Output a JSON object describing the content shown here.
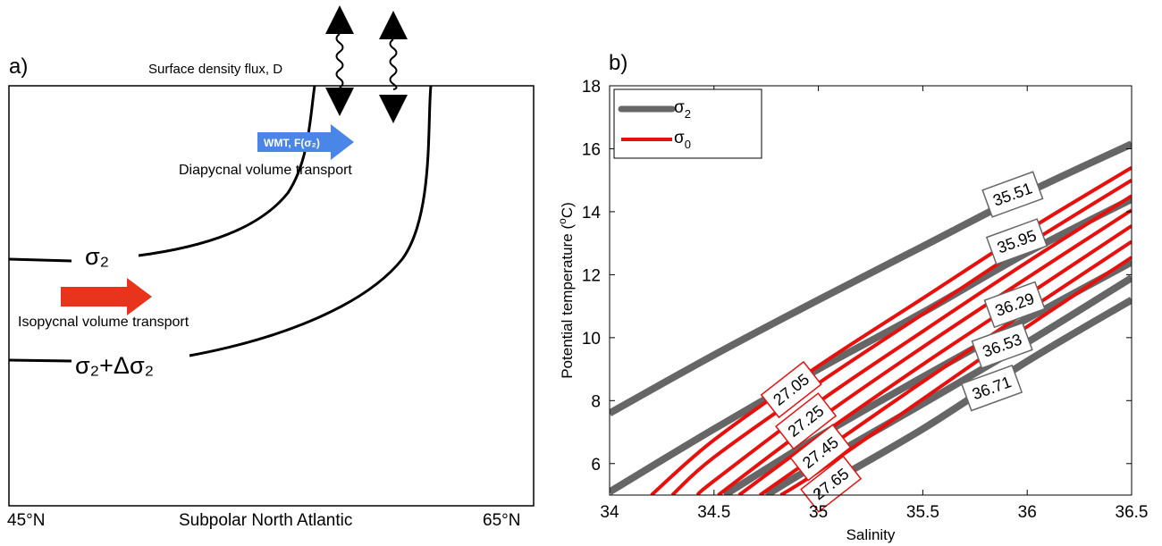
{
  "panel_a": {
    "panel_label": "a)",
    "flux_label": "Surface density flux, D",
    "wmt_label": "WMT, F(σ₂)",
    "diapycnal_label": "Diapycnal volume transport",
    "sigma2_label": "σ₂",
    "sigma2_delta_label": "σ₂+Δσ₂",
    "isopycnal_label": "Isopycnal volume transport",
    "x_left_label": "45°N",
    "x_mid_label": "Subpolar North Atlantic",
    "x_right_label": "65°N",
    "colors": {
      "wmt_arrow": "#4a86e8",
      "isopycnal_arrow": "#e8341c",
      "lines": "#000000"
    }
  },
  "chart_data": {
    "type": "line",
    "panel_label": "b)",
    "xlabel": "Salinity",
    "ylabel": "Potential temperature (°C)",
    "ylabel_base": "Potential temperature (",
    "ylabel_sup": "o",
    "ylabel_end": "C)",
    "xlim": [
      34,
      36.5
    ],
    "ylim": [
      5,
      18
    ],
    "xticks": [
      34,
      34.5,
      35,
      35.5,
      36,
      36.5
    ],
    "yticks": [
      6,
      8,
      10,
      12,
      14,
      16,
      18
    ],
    "legend": {
      "position": "top-left",
      "entries": [
        {
          "base": "σ",
          "sub": "2",
          "color": "#666666"
        },
        {
          "base": "σ",
          "sub": "0",
          "color": "#e8100c"
        }
      ]
    },
    "series_sigma2": [
      {
        "label": "35.51",
        "color": "#666666",
        "x": [
          34,
          34.5,
          35,
          35.5,
          36,
          36.5
        ],
        "y": [
          7.6,
          9.45,
          11.2,
          12.9,
          14.6,
          16.15
        ]
      },
      {
        "label": "35.95",
        "color": "#666666",
        "x": [
          34,
          34.5,
          35,
          35.5,
          36,
          36.5
        ],
        "y": [
          5.1,
          7.1,
          9.0,
          10.8,
          12.7,
          14.4
        ]
      },
      {
        "label": "36.29",
        "color": "#666666",
        "x": [
          34.55,
          35,
          35.5,
          36,
          36.5
        ],
        "y": [
          5.0,
          6.85,
          8.75,
          10.6,
          12.4
        ]
      },
      {
        "label": "36.53",
        "color": "#666666",
        "x": [
          34.75,
          35,
          35.5,
          36,
          36.5
        ],
        "y": [
          5.0,
          6.0,
          7.9,
          9.85,
          11.9
        ]
      },
      {
        "label": "36.71",
        "color": "#666666",
        "x": [
          34.95,
          35.5,
          36,
          36.5
        ],
        "y": [
          5.0,
          7.1,
          9.25,
          11.2
        ]
      }
    ],
    "series_sigma0": [
      {
        "label": "27.05",
        "color": "#e8100c",
        "x": [
          34.2,
          34.5,
          35,
          35.5,
          36,
          36.5
        ],
        "y": [
          5.0,
          6.75,
          9.1,
          11.25,
          13.4,
          15.4
        ]
      },
      {
        "label": "",
        "color": "#e8100c",
        "x": [
          34.3,
          34.5,
          35,
          35.5,
          36,
          36.5
        ],
        "y": [
          5.0,
          6.2,
          8.55,
          10.75,
          12.95,
          15.0
        ]
      },
      {
        "label": "27.25",
        "color": "#e8100c",
        "x": [
          34.42,
          34.5,
          35,
          35.5,
          36,
          36.5
        ],
        "y": [
          5.0,
          5.45,
          7.95,
          10.2,
          12.4,
          14.5
        ]
      },
      {
        "label": "",
        "color": "#e8100c",
        "x": [
          34.52,
          35,
          35.5,
          36,
          36.5
        ],
        "y": [
          5.0,
          7.4,
          9.7,
          11.9,
          14.05
        ]
      },
      {
        "label": "27.45",
        "color": "#e8100c",
        "x": [
          34.62,
          35,
          35.5,
          36,
          36.5
        ],
        "y": [
          5.0,
          6.85,
          9.15,
          11.35,
          13.55
        ]
      },
      {
        "label": "",
        "color": "#e8100c",
        "x": [
          34.72,
          35,
          35.5,
          36,
          36.5
        ],
        "y": [
          5.0,
          6.3,
          8.6,
          10.85,
          13.05
        ]
      },
      {
        "label": "27.65",
        "color": "#e8100c",
        "x": [
          34.82,
          35,
          35.5,
          36,
          36.5
        ],
        "y": [
          5.0,
          5.75,
          8.05,
          10.35,
          12.55
        ]
      }
    ],
    "sigma2_box_positions": [
      {
        "label": "35.51",
        "x": 35.93,
        "y": 14.55
      },
      {
        "label": "35.95",
        "x": 35.95,
        "y": 13.05
      },
      {
        "label": "36.29",
        "x": 35.94,
        "y": 11.05
      },
      {
        "label": "36.53",
        "x": 35.88,
        "y": 9.75
      },
      {
        "label": "36.71",
        "x": 35.83,
        "y": 8.4
      }
    ],
    "sigma0_box_positions": [
      {
        "label": "27.05",
        "x": 34.87,
        "y": 8.35
      },
      {
        "label": "27.25",
        "x": 34.94,
        "y": 7.35
      },
      {
        "label": "27.45",
        "x": 35.01,
        "y": 6.35
      },
      {
        "label": "27.65",
        "x": 35.06,
        "y": 5.35
      }
    ]
  }
}
